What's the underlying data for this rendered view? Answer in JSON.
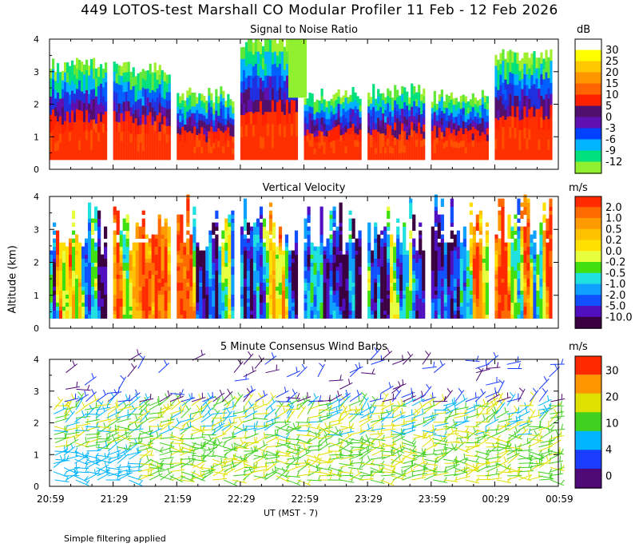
{
  "title": "449 LOTOS-test Marshall CO Modular Profiler 11 Feb - 12 Feb 2026",
  "y_axis_title": "Altitude (km)",
  "x_axis_title": "UT  (MST - 7)",
  "footnote": "Simple filtering applied",
  "chart_data": [
    {
      "type": "heatmap",
      "title": "Signal to Noise Ratio",
      "unit": "dB",
      "x_labels": [
        "20:59",
        "21:29",
        "21:59",
        "22:29",
        "22:59",
        "23:29",
        "23:59",
        "00:29",
        "00:59"
      ],
      "ylim": [
        0,
        4
      ],
      "y_ticks": [
        0,
        1,
        2,
        3,
        4
      ],
      "colorbar": {
        "labels": [
          "30",
          "25",
          "20",
          "15",
          "10",
          "5",
          "0",
          "-3",
          "-6",
          "-9",
          "-12"
        ],
        "colors": [
          "#ffffff",
          "#ffff00",
          "#ffc800",
          "#ff9600",
          "#ff6400",
          "#ff2000",
          "#52106e",
          "#6010b0",
          "#0040ff",
          "#00b4ff",
          "#00e07c",
          "#90f030"
        ]
      },
      "segments": [
        {
          "start": "20:59",
          "end": "21:25",
          "top_km": 3.2,
          "base_km": 0.3
        },
        {
          "start": "21:29",
          "end": "21:55",
          "top_km": 3.1,
          "base_km": 0.3
        },
        {
          "start": "21:59",
          "end": "22:25",
          "top_km": 2.3,
          "base_km": 0.3
        },
        {
          "start": "22:29",
          "end": "22:55",
          "top_km": 4.0,
          "base_km": 0.3
        },
        {
          "start": "22:59",
          "end": "23:25",
          "top_km": 2.3,
          "base_km": 0.3
        },
        {
          "start": "23:29",
          "end": "23:55",
          "top_km": 2.4,
          "base_km": 0.3
        },
        {
          "start": "23:59",
          "end": "00:25",
          "top_km": 2.2,
          "base_km": 0.3
        },
        {
          "start": "00:29",
          "end": "00:55",
          "top_km": 3.5,
          "base_km": 0.3
        }
      ]
    },
    {
      "type": "heatmap",
      "title": "Vertical Velocity",
      "unit": "m/s",
      "x_labels": [
        "20:59",
        "21:29",
        "21:59",
        "22:29",
        "22:59",
        "23:29",
        "23:59",
        "00:29",
        "00:59"
      ],
      "ylim": [
        0,
        4
      ],
      "y_ticks": [
        0,
        1,
        2,
        3,
        4
      ],
      "colorbar": {
        "labels": [
          "2.0",
          "1.0",
          "0.5",
          "0.2",
          "0.0",
          "-0.2",
          "-0.5",
          "-1.0",
          "-2.0",
          "-5.0",
          "-10.0"
        ],
        "colors": [
          "#ff2a00",
          "#ff6a00",
          "#ff9a00",
          "#ffc200",
          "#ffe000",
          "#e8ff40",
          "#40e010",
          "#20e0e0",
          "#10a0ff",
          "#1050ff",
          "#5010c0",
          "#3a0040"
        ]
      }
    },
    {
      "type": "scatter",
      "title": "5 Minute Consensus Wind Barbs",
      "unit": "m/s",
      "x_labels": [
        "20:59",
        "21:29",
        "21:59",
        "22:29",
        "22:59",
        "23:29",
        "23:59",
        "00:29",
        "00:59"
      ],
      "ylim": [
        0,
        4
      ],
      "y_ticks": [
        0,
        1,
        2,
        3,
        4
      ],
      "colorbar": {
        "labels": [
          "30",
          "20",
          "10",
          "4",
          "0"
        ],
        "colors": [
          "#ff2a00",
          "#ff9600",
          "#e0e000",
          "#40d020",
          "#00b4ff",
          "#1a3cff",
          "#500a78"
        ]
      }
    }
  ]
}
